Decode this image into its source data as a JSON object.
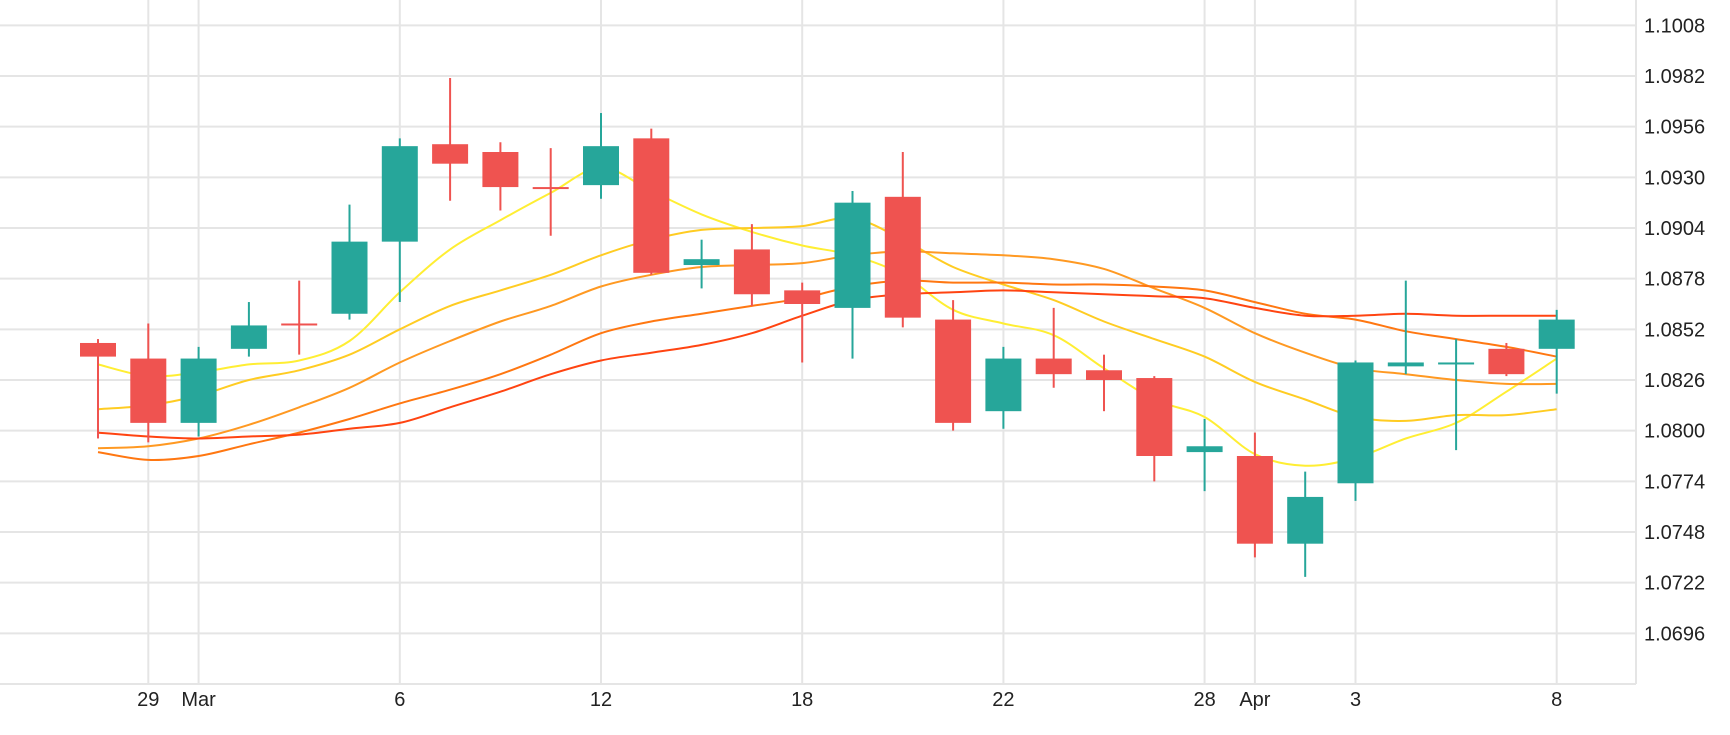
{
  "chart_data": {
    "type": "candlestick",
    "title": "",
    "ylim": [
      1.067,
      1.1021
    ],
    "y_ticks": [
      "1.1008",
      "1.0982",
      "1.0956",
      "1.0930",
      "1.0904",
      "1.0878",
      "1.0852",
      "1.0826",
      "1.0800",
      "1.0774",
      "1.0748",
      "1.0722",
      "1.0696"
    ],
    "x_ticks": [
      {
        "label": "29",
        "x": 1
      },
      {
        "label": "Mar",
        "x": 2
      },
      {
        "label": "6",
        "x": 6
      },
      {
        "label": "12",
        "x": 10
      },
      {
        "label": "18",
        "x": 14
      },
      {
        "label": "22",
        "x": 18
      },
      {
        "label": "28",
        "x": 22
      },
      {
        "label": "Apr",
        "x": 23
      },
      {
        "label": "3",
        "x": 25
      },
      {
        "label": "8",
        "x": 29
      }
    ],
    "grid": true,
    "colors": {
      "up": "#26a69a",
      "down": "#ef5350",
      "grid": "#e5e5e5"
    },
    "candles": [
      {
        "x": 0,
        "open": 1.0845,
        "high": 1.0847,
        "low": 1.0796,
        "close": 1.0838
      },
      {
        "x": 1,
        "open": 1.0837,
        "high": 1.0855,
        "low": 1.0794,
        "close": 1.0804
      },
      {
        "x": 2,
        "open": 1.0804,
        "high": 1.0843,
        "low": 1.0797,
        "close": 1.0837
      },
      {
        "x": 3,
        "open": 1.0842,
        "high": 1.0866,
        "low": 1.0838,
        "close": 1.0854
      },
      {
        "x": 4,
        "open": 1.0855,
        "high": 1.0877,
        "low": 1.0839,
        "close": 1.0854
      },
      {
        "x": 5,
        "open": 1.086,
        "high": 1.0916,
        "low": 1.0857,
        "close": 1.0897
      },
      {
        "x": 6,
        "open": 1.0897,
        "high": 1.095,
        "low": 1.0866,
        "close": 1.0946
      },
      {
        "x": 7,
        "open": 1.0947,
        "high": 1.0981,
        "low": 1.0918,
        "close": 1.0937
      },
      {
        "x": 8,
        "open": 1.0943,
        "high": 1.0948,
        "low": 1.0913,
        "close": 1.0925
      },
      {
        "x": 9,
        "open": 1.0925,
        "high": 1.0945,
        "low": 1.09,
        "close": 1.0924
      },
      {
        "x": 10,
        "open": 1.0926,
        "high": 1.0963,
        "low": 1.0919,
        "close": 1.0946
      },
      {
        "x": 11,
        "open": 1.095,
        "high": 1.0955,
        "low": 1.088,
        "close": 1.0881
      },
      {
        "x": 12,
        "open": 1.0885,
        "high": 1.0898,
        "low": 1.0873,
        "close": 1.0888
      },
      {
        "x": 13,
        "open": 1.0893,
        "high": 1.0906,
        "low": 1.0864,
        "close": 1.087
      },
      {
        "x": 14,
        "open": 1.0872,
        "high": 1.0876,
        "low": 1.0835,
        "close": 1.0865
      },
      {
        "x": 15,
        "open": 1.0863,
        "high": 1.0923,
        "low": 1.0837,
        "close": 1.0917
      },
      {
        "x": 16,
        "open": 1.092,
        "high": 1.0943,
        "low": 1.0853,
        "close": 1.0858
      },
      {
        "x": 17,
        "open": 1.0857,
        "high": 1.0867,
        "low": 1.08,
        "close": 1.0804
      },
      {
        "x": 18,
        "open": 1.081,
        "high": 1.0843,
        "low": 1.0801,
        "close": 1.0837
      },
      {
        "x": 19,
        "open": 1.0837,
        "high": 1.0863,
        "low": 1.0822,
        "close": 1.0829
      },
      {
        "x": 20,
        "open": 1.0831,
        "high": 1.0839,
        "low": 1.081,
        "close": 1.0826
      },
      {
        "x": 21,
        "open": 1.0827,
        "high": 1.0828,
        "low": 1.0774,
        "close": 1.0787
      },
      {
        "x": 22,
        "open": 1.0789,
        "high": 1.0806,
        "low": 1.0769,
        "close": 1.0792
      },
      {
        "x": 23,
        "open": 1.0787,
        "high": 1.0799,
        "low": 1.0735,
        "close": 1.0742
      },
      {
        "x": 24,
        "open": 1.0742,
        "high": 1.0779,
        "low": 1.0725,
        "close": 1.0766
      },
      {
        "x": 25,
        "open": 1.0773,
        "high": 1.0836,
        "low": 1.0764,
        "close": 1.0835
      },
      {
        "x": 26,
        "open": 1.0833,
        "high": 1.0877,
        "low": 1.0829,
        "close": 1.0835
      },
      {
        "x": 27,
        "open": 1.0835,
        "high": 1.0847,
        "low": 1.079,
        "close": 1.0835
      },
      {
        "x": 28,
        "open": 1.0842,
        "high": 1.0845,
        "low": 1.0828,
        "close": 1.0829
      },
      {
        "x": 29,
        "open": 1.0842,
        "high": 1.0862,
        "low": 1.0819,
        "close": 1.0857
      }
    ],
    "series": [
      {
        "color": "#ffee33",
        "x": [
          0,
          1,
          2,
          3,
          4,
          5,
          6,
          7,
          8,
          9,
          10,
          11,
          12,
          13,
          14,
          15,
          16,
          17,
          18,
          19,
          20,
          21,
          22,
          23,
          24,
          25,
          26,
          27,
          28,
          29
        ],
        "values": [
          1.0834,
          1.0828,
          1.083,
          1.0834,
          1.0836,
          1.0846,
          1.0871,
          1.0893,
          1.0908,
          1.0922,
          1.0935,
          1.0923,
          1.0911,
          1.0902,
          1.0895,
          1.089,
          1.088,
          1.0862,
          1.0855,
          1.0849,
          1.0832,
          1.0816,
          1.0807,
          1.0788,
          1.0782,
          1.0786,
          1.0796,
          1.0804,
          1.082,
          1.0837
        ]
      },
      {
        "color": "#ffcc22",
        "x": [
          0,
          1,
          2,
          3,
          4,
          5,
          6,
          7,
          8,
          9,
          10,
          11,
          12,
          13,
          14,
          15,
          16,
          17,
          18,
          19,
          20,
          21,
          22,
          23,
          24,
          25,
          26,
          27,
          28,
          29
        ],
        "values": [
          1.0811,
          1.0813,
          1.0818,
          1.0826,
          1.0831,
          1.0839,
          1.0852,
          1.0864,
          1.0872,
          1.088,
          1.089,
          1.0898,
          1.0903,
          1.0904,
          1.0905,
          1.0909,
          1.0898,
          1.0884,
          1.0875,
          1.0867,
          1.0856,
          1.0847,
          1.0838,
          1.0825,
          1.0816,
          1.0807,
          1.0805,
          1.0808,
          1.0808,
          1.0811
        ]
      },
      {
        "color": "#ff9922",
        "x": [
          0,
          1,
          2,
          3,
          4,
          5,
          6,
          7,
          8,
          9,
          10,
          11,
          12,
          13,
          14,
          15,
          16,
          17,
          18,
          19,
          20,
          21,
          22,
          23,
          24,
          25,
          26,
          27,
          28,
          29
        ],
        "values": [
          1.0791,
          1.0792,
          1.0796,
          1.0803,
          1.0812,
          1.0822,
          1.0835,
          1.0846,
          1.0856,
          1.0864,
          1.0874,
          1.088,
          1.0884,
          1.0885,
          1.0886,
          1.089,
          1.0892,
          1.0891,
          1.089,
          1.0888,
          1.0883,
          1.0873,
          1.0863,
          1.085,
          1.084,
          1.0832,
          1.0829,
          1.0826,
          1.0824,
          1.0824
        ]
      },
      {
        "color": "#ff7711",
        "x": [
          0,
          1,
          2,
          3,
          4,
          5,
          6,
          7,
          8,
          9,
          10,
          11,
          12,
          13,
          14,
          15,
          16,
          17,
          18,
          19,
          20,
          21,
          22,
          23,
          24,
          25,
          26,
          27,
          28,
          29
        ],
        "values": [
          1.0789,
          1.0785,
          1.0787,
          1.0793,
          1.0799,
          1.0806,
          1.0814,
          1.0821,
          1.0829,
          1.0839,
          1.085,
          1.0856,
          1.086,
          1.0864,
          1.0868,
          1.0874,
          1.0877,
          1.0876,
          1.0876,
          1.0875,
          1.0875,
          1.0874,
          1.0872,
          1.0866,
          1.086,
          1.0857,
          1.0851,
          1.0847,
          1.0843,
          1.0838
        ]
      },
      {
        "color": "#ff4411",
        "x": [
          0,
          1,
          2,
          3,
          4,
          5,
          6,
          7,
          8,
          9,
          10,
          11,
          12,
          13,
          14,
          15,
          16,
          17,
          18,
          19,
          20,
          21,
          22,
          23,
          24,
          25,
          26,
          27,
          28,
          29
        ],
        "values": [
          1.0799,
          1.0797,
          1.0796,
          1.0797,
          1.0798,
          1.0801,
          1.0804,
          1.0812,
          1.082,
          1.0829,
          1.0836,
          1.084,
          1.0844,
          1.085,
          1.0859,
          1.0867,
          1.087,
          1.0871,
          1.0872,
          1.0871,
          1.087,
          1.0869,
          1.0868,
          1.0863,
          1.0859,
          1.0859,
          1.086,
          1.0859,
          1.0859,
          1.0859
        ]
      }
    ]
  }
}
